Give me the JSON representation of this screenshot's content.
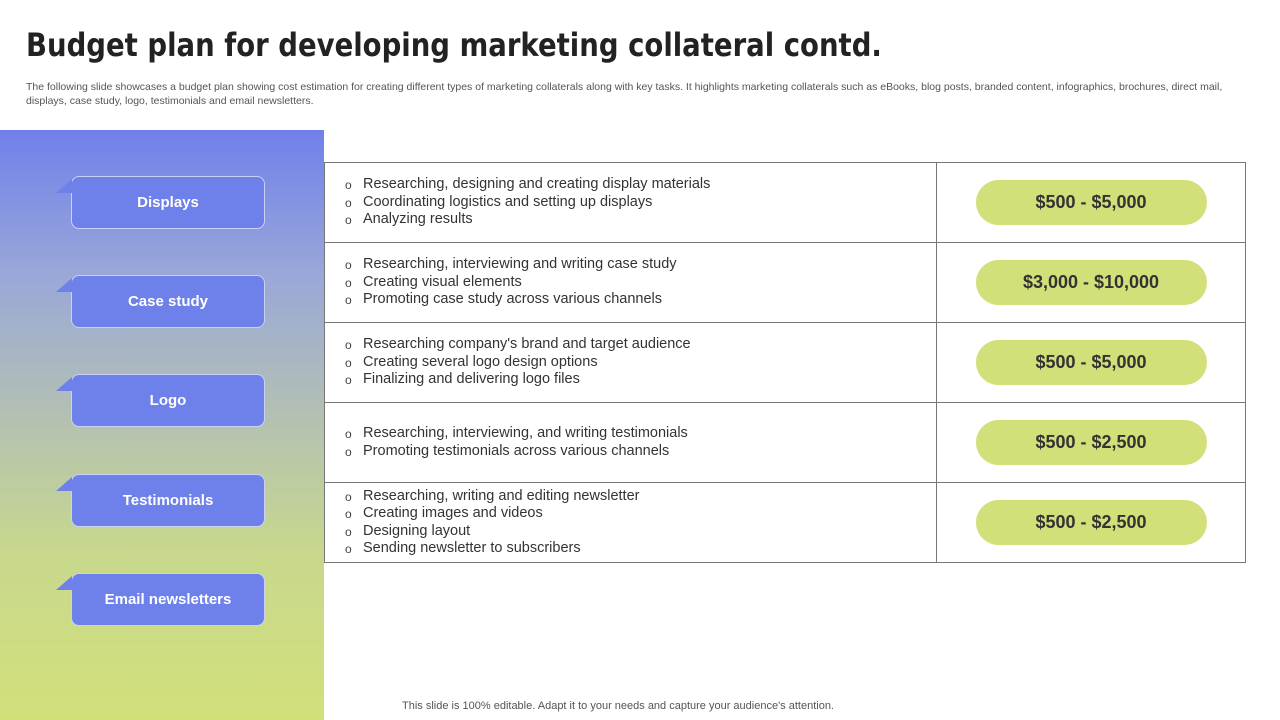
{
  "title": "Budget plan for developing marketing collateral contd.",
  "subtitle": "The following slide showcases a budget plan showing cost estimation for creating different types of marketing collaterals along with key tasks. It highlights marketing collaterals such as eBooks, blog posts, branded content, infographics, brochures, direct mail, displays, case study, logo, testimonials and email newsletters.",
  "colors": {
    "category_box": "#6e80ea",
    "cost_pill": "#d3e07a"
  },
  "rows": [
    {
      "category": "Displays",
      "tasks": [
        "Researching, designing and creating display materials",
        "Coordinating logistics and setting up displays",
        "Analyzing results"
      ],
      "cost": "$500 - $5,000"
    },
    {
      "category": "Case study",
      "tasks": [
        "Researching, interviewing and writing case study",
        "Creating visual elements",
        "Promoting case study across various channels"
      ],
      "cost": "$3,000 - $10,000"
    },
    {
      "category": "Logo",
      "tasks": [
        "Researching company's brand and target audience",
        "Creating several logo design options",
        "Finalizing and delivering logo files"
      ],
      "cost": "$500 - $5,000"
    },
    {
      "category": "Testimonials",
      "tasks": [
        "Researching, interviewing,  and writing testimonials",
        "Promoting testimonials across various channels"
      ],
      "cost": "$500 - $2,500"
    },
    {
      "category": "Email newsletters",
      "tasks": [
        "Researching, writing and editing newsletter",
        "Creating images and videos",
        "Designing layout",
        "Sending newsletter to subscribers"
      ],
      "cost": "$500 - $2,500"
    }
  ],
  "footer": "This slide is 100% editable. Adapt it to your needs and capture your audience's attention."
}
